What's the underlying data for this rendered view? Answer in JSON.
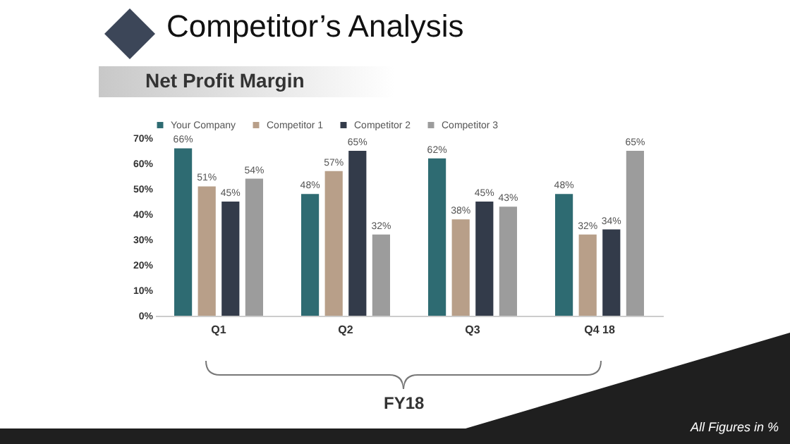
{
  "chart_data": {
    "type": "bar",
    "title": "Competitor’s Analysis",
    "subtitle": "Net Profit Margin",
    "categories": [
      "Q1",
      "Q2",
      "Q3",
      "Q4 18"
    ],
    "series": [
      {
        "name": "Your Company",
        "color": "#2e6b72",
        "values": [
          66,
          48,
          62,
          48
        ],
        "value_labels": [
          "66%",
          "48%",
          "62%",
          "48%"
        ]
      },
      {
        "name": "Competitor 1",
        "color": "#b89f89",
        "values": [
          51,
          57,
          38,
          32
        ],
        "value_labels": [
          "51%",
          "57%",
          "38%",
          "32%"
        ]
      },
      {
        "name": "Competitor 2",
        "color": "#333b4a",
        "values": [
          45,
          65,
          45,
          34
        ],
        "value_labels": [
          "45%",
          "65%",
          "45%",
          "34%"
        ]
      },
      {
        "name": "Competitor 3",
        "color": "#9c9c9c",
        "values": [
          54,
          32,
          43,
          65
        ],
        "value_labels": [
          "54%",
          "32%",
          "43%",
          "65%"
        ]
      }
    ],
    "ylim": [
      0,
      70
    ],
    "yticks": [
      {
        "value": 0,
        "label": "0%"
      },
      {
        "value": 10,
        "label": "10%"
      },
      {
        "value": 20,
        "label": "20%"
      },
      {
        "value": 30,
        "label": "30%"
      },
      {
        "value": 40,
        "label": "40%"
      },
      {
        "value": 50,
        "label": "50%"
      },
      {
        "value": 60,
        "label": "60%"
      },
      {
        "value": 70,
        "label": "70%"
      }
    ],
    "grid": false,
    "legend": "top",
    "annotations": [
      "FY18",
      "All Figures in %"
    ]
  }
}
